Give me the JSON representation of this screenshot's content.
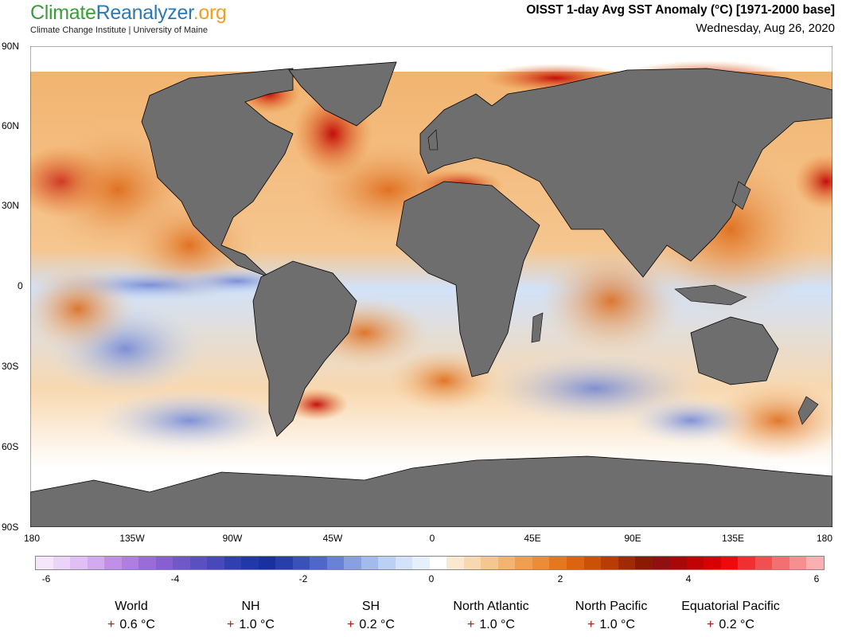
{
  "header": {
    "logo_part1": "Climate",
    "logo_part2": "Reanalyzer",
    "logo_part3": ".org",
    "subtitle": "Climate Change Institute | University of Maine",
    "title": "OISST 1-day Avg SST Anomaly (°C) [1971-2000 base]",
    "date": "Wednesday, Aug 26, 2020"
  },
  "map": {
    "lat_labels": [
      "90N",
      "60N",
      "30N",
      "0",
      "30S",
      "60S",
      "90S"
    ],
    "lon_labels": [
      "180",
      "135W",
      "90W",
      "45W",
      "0",
      "45E",
      "90E",
      "135E",
      "180"
    ],
    "land_color": "#6e6e6e",
    "ice_color": "#ffffff"
  },
  "colorbar": {
    "labels": [
      "-6",
      "-4",
      "-2",
      "0",
      "2",
      "4",
      "6"
    ],
    "colors": [
      "#f6e6fb",
      "#ecd3f8",
      "#e0c0f4",
      "#d2aaf0",
      "#c090e8",
      "#ae7ee0",
      "#9a6cd8",
      "#8660d0",
      "#7058c8",
      "#5a50c0",
      "#4848b8",
      "#3040b0",
      "#2038a8",
      "#1830a0",
      "#283ea8",
      "#3a52b8",
      "#4f68c8",
      "#6a82d6",
      "#88a0e2",
      "#a4baec",
      "#bcd0f4",
      "#d2e2f8",
      "#e6f0fb",
      "#ffffff",
      "#fbe8d0",
      "#f8d8b0",
      "#f5c690",
      "#f2b470",
      "#eea050",
      "#ea8c38",
      "#e47820",
      "#dc6410",
      "#cc5008",
      "#b83c04",
      "#a02a02",
      "#8a1a00",
      "#901010",
      "#a80808",
      "#c00404",
      "#d80000",
      "#ee0a0a",
      "#f03030",
      "#f25050",
      "#f47070",
      "#f69090",
      "#f8b0b0"
    ]
  },
  "stats": [
    {
      "name": "World",
      "value": "0.6 °C",
      "sign": "+"
    },
    {
      "name": "NH",
      "value": "1.0 °C",
      "sign": "+"
    },
    {
      "name": "SH",
      "value": "0.2 °C",
      "sign": "+"
    },
    {
      "name": "North Atlantic",
      "value": "1.0 °C",
      "sign": "+"
    },
    {
      "name": "North Pacific",
      "value": "1.0 °C",
      "sign": "+"
    },
    {
      "name": "Equatorial Pacific",
      "value": "0.2 °C",
      "sign": "+"
    }
  ]
}
